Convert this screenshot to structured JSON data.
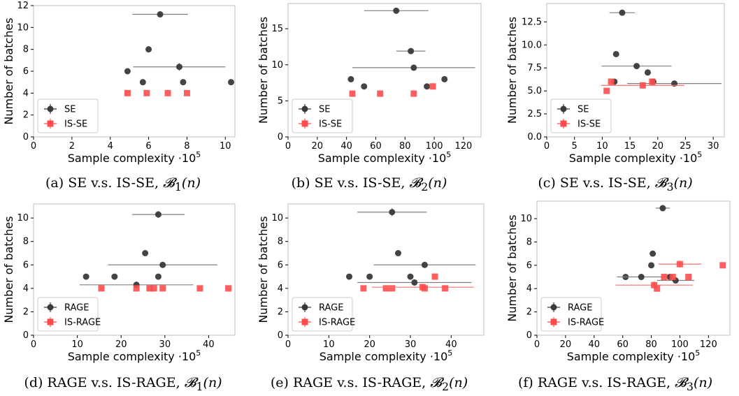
{
  "colors": {
    "marker_a": "#3a3a3a",
    "marker_b": "#ff4d4d",
    "err_a": "#808080",
    "err_b": "#ff7070"
  },
  "chart_data": [
    {
      "type": "scatter",
      "caption": "(a) SE v.s. IS-SE, ",
      "caption_math": "𝓑",
      "caption_sub": "1",
      "caption_tail": "(n)",
      "xlabel": "Sample complexity ·10",
      "xlabel_exp": "5",
      "ylabel": "Number of batches",
      "xlim": [
        0,
        10.5
      ],
      "ylim": [
        0,
        12
      ],
      "xticks": [
        0,
        2,
        4,
        6,
        8,
        10
      ],
      "yticks": [
        0,
        2,
        4,
        6,
        8,
        10,
        12
      ],
      "legend_position": "lower-left",
      "series": [
        {
          "name": "SE",
          "points": [
            {
              "x": 4.9,
              "y": 6,
              "xerr": 0,
              "yerr": 0
            },
            {
              "x": 5.7,
              "y": 5,
              "xerr": 0,
              "yerr": 0
            },
            {
              "x": 6.0,
              "y": 8,
              "xerr": 0,
              "yerr": 0
            },
            {
              "x": 6.6,
              "y": 11.2,
              "xerr": 1.45,
              "yerr": 0.2
            },
            {
              "x": 7.6,
              "y": 6.4,
              "xerr": 2.4,
              "yerr": 0.35
            },
            {
              "x": 7.8,
              "y": 5,
              "xerr": 0,
              "yerr": 0
            },
            {
              "x": 10.3,
              "y": 5,
              "xerr": 0,
              "yerr": 0
            }
          ]
        },
        {
          "name": "IS-SE",
          "points": [
            {
              "x": 4.9,
              "y": 4,
              "xerr": 0,
              "yerr": 0
            },
            {
              "x": 5.9,
              "y": 4,
              "xerr": 0,
              "yerr": 0
            },
            {
              "x": 7.0,
              "y": 4,
              "xerr": 0,
              "yerr": 0
            },
            {
              "x": 8.0,
              "y": 4,
              "xerr": 0,
              "yerr": 0
            }
          ]
        }
      ]
    },
    {
      "type": "scatter",
      "caption": "(b) SE v.s. IS-SE, ",
      "caption_math": "𝓑",
      "caption_sub": "2",
      "caption_tail": "(n)",
      "xlabel": "Sample complexity ·10",
      "xlabel_exp": "5",
      "ylabel": "Number of batches",
      "xlim": [
        0,
        132
      ],
      "ylim": [
        0,
        18.5
      ],
      "xticks": [
        0,
        20,
        40,
        60,
        80,
        100,
        120
      ],
      "yticks": [
        0,
        5,
        10,
        15
      ],
      "legend_position": "lower-left",
      "series": [
        {
          "name": "SE",
          "points": [
            {
              "x": 43,
              "y": 8,
              "xerr": 0,
              "yerr": 0
            },
            {
              "x": 52,
              "y": 7,
              "xerr": 0,
              "yerr": 0
            },
            {
              "x": 74,
              "y": 17.5,
              "xerr": 22,
              "yerr": 0.3
            },
            {
              "x": 84,
              "y": 11.9,
              "xerr": 10,
              "yerr": 0.3
            },
            {
              "x": 86,
              "y": 9.6,
              "xerr": 42,
              "yerr": 0.3
            },
            {
              "x": 95,
              "y": 7,
              "xerr": 0,
              "yerr": 0
            },
            {
              "x": 107,
              "y": 8,
              "xerr": 0,
              "yerr": 0
            }
          ]
        },
        {
          "name": "IS-SE",
          "points": [
            {
              "x": 44,
              "y": 6,
              "xerr": 0,
              "yerr": 0
            },
            {
              "x": 63,
              "y": 6,
              "xerr": 0,
              "yerr": 0
            },
            {
              "x": 86,
              "y": 6,
              "xerr": 0,
              "yerr": 0
            },
            {
              "x": 99,
              "y": 7,
              "xerr": 0,
              "yerr": 0
            }
          ]
        }
      ]
    },
    {
      "type": "scatter",
      "caption": "(c) SE v.s. IS-SE, ",
      "caption_math": "𝓑",
      "caption_sub": "3",
      "caption_tail": "(n)",
      "xlabel": "Sample complexity ·10",
      "xlabel_exp": "5",
      "ylabel": "Number of batches",
      "xlim": [
        0,
        32
      ],
      "ylim": [
        0,
        14.5
      ],
      "xticks": [
        0,
        5,
        10,
        15,
        20,
        25,
        30
      ],
      "yticks": [
        0.0,
        2.5,
        5.0,
        7.5,
        10.0,
        12.5
      ],
      "ytick_labels": [
        "0.0",
        "2.5",
        "5.0",
        "7.5",
        "10.0",
        "12.5"
      ],
      "legend_position": "lower-left",
      "series": [
        {
          "name": "SE",
          "points": [
            {
              "x": 12.2,
              "y": 6,
              "xerr": 0,
              "yerr": 0
            },
            {
              "x": 12.5,
              "y": 9,
              "xerr": 0,
              "yerr": 0
            },
            {
              "x": 13.6,
              "y": 13.5,
              "xerr": 2.3,
              "yerr": 0.3
            },
            {
              "x": 16.2,
              "y": 7.7,
              "xerr": 6.3,
              "yerr": 0.3
            },
            {
              "x": 18.2,
              "y": 7,
              "xerr": 0,
              "yerr": 0
            },
            {
              "x": 19.2,
              "y": 6,
              "xerr": 0,
              "yerr": 0
            },
            {
              "x": 23.0,
              "y": 5.8,
              "xerr": 8.5,
              "yerr": 0.25
            }
          ]
        },
        {
          "name": "IS-SE",
          "points": [
            {
              "x": 10.8,
              "y": 5,
              "xerr": 0,
              "yerr": 0
            },
            {
              "x": 11.6,
              "y": 6,
              "xerr": 0,
              "yerr": 0
            },
            {
              "x": 17.3,
              "y": 5.6,
              "xerr": 7.5,
              "yerr": 0.3
            },
            {
              "x": 19.0,
              "y": 6,
              "xerr": 0,
              "yerr": 0
            }
          ]
        }
      ]
    },
    {
      "type": "scatter",
      "caption": "(d) RAGE v.s. IS-RAGE, ",
      "caption_math": "𝓑",
      "caption_sub": "1",
      "caption_tail": "(n)",
      "xlabel": "Sample complexity ·10",
      "xlabel_exp": "5",
      "ylabel": "Number of batches",
      "xlim": [
        0,
        46
      ],
      "ylim": [
        0,
        11.2
      ],
      "xticks": [
        0,
        10,
        20,
        30,
        40
      ],
      "yticks": [
        0,
        2,
        4,
        6,
        8,
        10
      ],
      "legend_position": "lower-left",
      "series": [
        {
          "name": "RAGE",
          "points": [
            {
              "x": 12,
              "y": 5,
              "xerr": 0,
              "yerr": 0
            },
            {
              "x": 18.5,
              "y": 5,
              "xerr": 0,
              "yerr": 0
            },
            {
              "x": 23.5,
              "y": 4.3,
              "xerr": 13,
              "yerr": 0.3
            },
            {
              "x": 25.5,
              "y": 7,
              "xerr": 0,
              "yerr": 0
            },
            {
              "x": 28.5,
              "y": 10.3,
              "xerr": 6,
              "yerr": 0.3
            },
            {
              "x": 28.5,
              "y": 5,
              "xerr": 0,
              "yerr": 0
            },
            {
              "x": 29.5,
              "y": 6,
              "xerr": 12.5,
              "yerr": 0
            }
          ]
        },
        {
          "name": "IS-RAGE",
          "points": [
            {
              "x": 15.5,
              "y": 4,
              "xerr": 0,
              "yerr": 0
            },
            {
              "x": 23.5,
              "y": 4,
              "xerr": 0,
              "yerr": 0
            },
            {
              "x": 26.5,
              "y": 4,
              "xerr": 0,
              "yerr": 0
            },
            {
              "x": 27.5,
              "y": 4,
              "xerr": 0,
              "yerr": 0
            },
            {
              "x": 29.5,
              "y": 4,
              "xerr": 0,
              "yerr": 0
            },
            {
              "x": 38,
              "y": 4,
              "xerr": 0,
              "yerr": 0
            },
            {
              "x": 44.5,
              "y": 4,
              "xerr": 0,
              "yerr": 0
            }
          ]
        }
      ]
    },
    {
      "type": "scatter",
      "caption": "(e) RAGE v.s. IS-RAGE, ",
      "caption_math": "𝓑",
      "caption_sub": "2",
      "caption_tail": "(n)",
      "xlabel": "Sample complexity ·10",
      "xlabel_exp": "5",
      "ylabel": "Number of batches",
      "xlim": [
        0,
        48
      ],
      "ylim": [
        0,
        11.2
      ],
      "xticks": [
        0,
        10,
        20,
        30,
        40
      ],
      "yticks": [
        0,
        2,
        4,
        6,
        8,
        10
      ],
      "legend_position": "lower-left",
      "series": [
        {
          "name": "RAGE",
          "points": [
            {
              "x": 15,
              "y": 5,
              "xerr": 0,
              "yerr": 0
            },
            {
              "x": 20,
              "y": 5,
              "xerr": 0,
              "yerr": 0
            },
            {
              "x": 25.5,
              "y": 10.5,
              "xerr": 8.5,
              "yerr": 0.35
            },
            {
              "x": 27,
              "y": 7,
              "xerr": 0,
              "yerr": 0
            },
            {
              "x": 30,
              "y": 5,
              "xerr": 0,
              "yerr": 0
            },
            {
              "x": 31,
              "y": 4.5,
              "xerr": 14,
              "yerr": 0.25
            },
            {
              "x": 33.5,
              "y": 6,
              "xerr": 12.5,
              "yerr": 0
            }
          ]
        },
        {
          "name": "IS-RAGE",
          "points": [
            {
              "x": 18.5,
              "y": 4,
              "xerr": 0,
              "yerr": 0
            },
            {
              "x": 24,
              "y": 4,
              "xerr": 0,
              "yerr": 0
            },
            {
              "x": 25.5,
              "y": 4,
              "xerr": 0,
              "yerr": 0
            },
            {
              "x": 33,
              "y": 4.1,
              "xerr": 12.5,
              "yerr": 0.3
            },
            {
              "x": 33.5,
              "y": 4,
              "xerr": 0,
              "yerr": 0
            },
            {
              "x": 36,
              "y": 5,
              "xerr": 0,
              "yerr": 0
            },
            {
              "x": 38.5,
              "y": 4,
              "xerr": 0,
              "yerr": 0
            }
          ]
        }
      ]
    },
    {
      "type": "scatter",
      "caption": "(f) RAGE v.s. IS-RAGE, ",
      "caption_math": "𝓑",
      "caption_sub": "3",
      "caption_tail": "(n)",
      "xlabel": "Sample complexity ·10",
      "xlabel_exp": "5",
      "ylabel": "Number of batches",
      "xlim": [
        0,
        135
      ],
      "ylim": [
        0,
        11.5
      ],
      "xticks": [
        0,
        20,
        40,
        60,
        80,
        100,
        120
      ],
      "yticks": [
        0,
        2,
        4,
        6,
        8,
        10
      ],
      "legend_position": "lower-left",
      "series": [
        {
          "name": "RAGE",
          "points": [
            {
              "x": 62,
              "y": 5,
              "xerr": 0,
              "yerr": 0
            },
            {
              "x": 73,
              "y": 5,
              "xerr": 17,
              "yerr": 0
            },
            {
              "x": 80,
              "y": 6,
              "xerr": 0,
              "yerr": 0
            },
            {
              "x": 81,
              "y": 7,
              "xerr": 0,
              "yerr": 0
            },
            {
              "x": 88,
              "y": 10.9,
              "xerr": 5,
              "yerr": 0.25
            },
            {
              "x": 93,
              "y": 5,
              "xerr": 0,
              "yerr": 0
            },
            {
              "x": 97,
              "y": 4.7,
              "xerr": 13,
              "yerr": 0.25
            }
          ]
        },
        {
          "name": "IS-RAGE",
          "points": [
            {
              "x": 82,
              "y": 4.3,
              "xerr": 27,
              "yerr": 0.3
            },
            {
              "x": 84,
              "y": 4,
              "xerr": 0,
              "yerr": 0
            },
            {
              "x": 89,
              "y": 5,
              "xerr": 0,
              "yerr": 0
            },
            {
              "x": 95,
              "y": 5,
              "xerr": 0,
              "yerr": 0
            },
            {
              "x": 100,
              "y": 6.1,
              "xerr": 15,
              "yerr": 0.3
            },
            {
              "x": 106,
              "y": 5,
              "xerr": 0,
              "yerr": 0
            },
            {
              "x": 130,
              "y": 6,
              "xerr": 0,
              "yerr": 0
            }
          ]
        }
      ]
    }
  ]
}
